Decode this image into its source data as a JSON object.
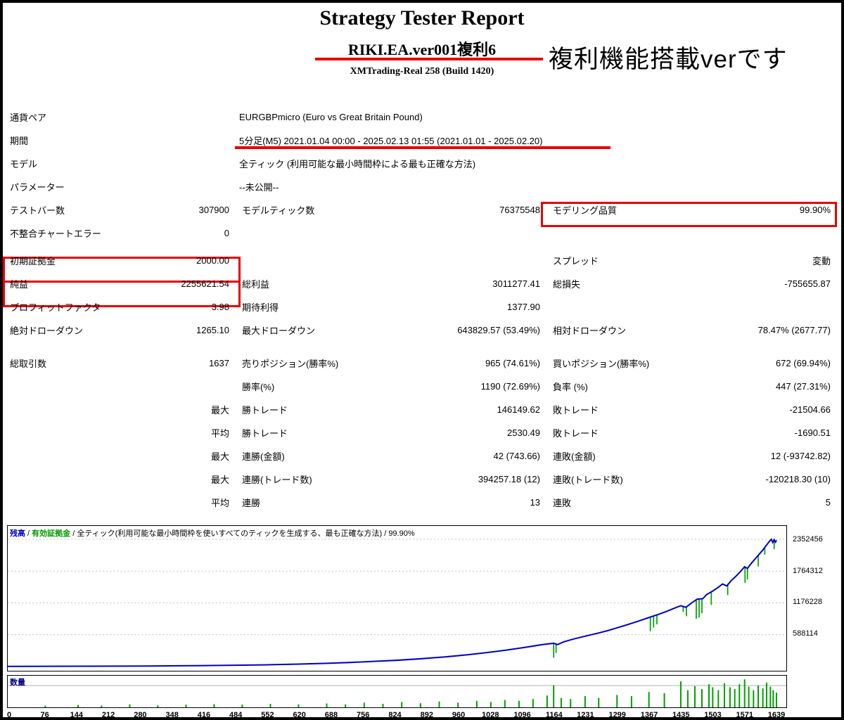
{
  "header": {
    "title": "Strategy Tester Report",
    "subtitle": "RIKI.EA.ver001複利6",
    "handwritten_note": "複利機能搭載verです",
    "server": "XMTrading-Real 258 (Build 1420)"
  },
  "annotation_color": "#e60000",
  "info_rows": [
    {
      "label": "通貨ペア",
      "value": "EURGBPmicro (Euro vs Great Britain Pound)"
    },
    {
      "label": "期間",
      "value": "5分足(M5) 2021.01.04 00:00 - 2025.02.13 01:55 (2021.01.01 - 2025.02.20)"
    },
    {
      "label": "モデル",
      "value": "全ティック (利用可能な最小時間枠による最も正確な方法)"
    },
    {
      "label": "パラメーター",
      "value": "--未公開--"
    }
  ],
  "stats_sections": [
    {
      "rows": [
        {
          "l1": "テストバー数",
          "v1": "307900",
          "l2": "モデルティック数",
          "v2": "76375548",
          "l3": "モデリング品質",
          "v3": "99.90%"
        },
        {
          "l1": "不整合チャートエラー",
          "v1": "0",
          "l2": "",
          "v2": "",
          "l3": "",
          "v3": ""
        }
      ]
    },
    {
      "rows": [
        {
          "l1": "初期証拠金",
          "v1": "2000.00",
          "l2": "",
          "v2": "",
          "l3": "スプレッド",
          "v3": "変動"
        },
        {
          "l1": "純益",
          "v1": "2255621.54",
          "l2": "総利益",
          "v2": "3011277.41",
          "l3": "総損失",
          "v3": "-755655.87"
        },
        {
          "l1": "プロフィットファクタ",
          "v1": "3.98",
          "l2": "期待利得",
          "v2": "1377.90",
          "l3": "",
          "v3": ""
        },
        {
          "l1": "絶対ドローダウン",
          "v1": "1265.10",
          "l2": "最大ドローダウン",
          "v2": "643829.57 (53.49%)",
          "l3": "相対ドローダウン",
          "v3": "78.47% (2677.77)"
        }
      ]
    },
    {
      "rows": [
        {
          "l1": "総取引数",
          "v1": "1637",
          "l2": "売りポジション(勝率%)",
          "v2": "965 (74.61%)",
          "l3": "買いポジション(勝率%)",
          "v3": "672 (69.94%)"
        },
        {
          "l1": "",
          "v1": "",
          "l2": "勝率(%)",
          "v2": "1190 (72.69%)",
          "l3": "負率 (%)",
          "v3": "447 (27.31%)"
        },
        {
          "l1": "",
          "v1": "最大",
          "l2": "勝トレード",
          "v2": "146149.62",
          "l3": "敗トレード",
          "v3": "-21504.66"
        },
        {
          "l1": "",
          "v1": "平均",
          "l2": "勝トレード",
          "v2": "2530.49",
          "l3": "敗トレード",
          "v3": "-1690.51"
        },
        {
          "l1": "",
          "v1": "最大",
          "l2": "連勝(金額)",
          "v2": "42 (743.66)",
          "l3": "連敗(金額)",
          "v3": "12 (-93742.82)"
        },
        {
          "l1": "",
          "v1": "最大",
          "l2": "連勝(トレード数)",
          "v2": "394257.18 (12)",
          "l3": "連敗(トレード数)",
          "v3": "-120218.30 (10)"
        },
        {
          "l1": "",
          "v1": "平均",
          "l2": "連勝",
          "v2": "13",
          "l3": "連敗",
          "v3": "5"
        }
      ]
    }
  ],
  "chart_data": {
    "type": "line",
    "legend": {
      "balance": "残高",
      "equity": "有効証拠金",
      "model": "全ティック(利用可能な最小時間枠を使いすべてのティックを生成する、最も正確な方法)",
      "quality": "99.90%"
    },
    "colors": {
      "balance": "#0000c0",
      "equity": "#00a000",
      "grid": "#c0c0c0"
    },
    "y_ticks": [
      2352456,
      1764312,
      1176228,
      588114
    ],
    "x_ticks": [
      0,
      76,
      144,
      212,
      280,
      348,
      416,
      484,
      552,
      620,
      688,
      756,
      824,
      892,
      960,
      1028,
      1096,
      1164,
      1231,
      1299,
      1367,
      1435,
      1503,
      1571,
      1639
    ],
    "xlim": [
      0,
      1660
    ],
    "ylim": [
      -80000,
      2600000
    ],
    "balance_points": [
      [
        0,
        2000
      ],
      [
        150,
        4000
      ],
      [
        300,
        8000
      ],
      [
        400,
        14000
      ],
      [
        500,
        24000
      ],
      [
        560,
        32000
      ],
      [
        620,
        43000
      ],
      [
        680,
        58000
      ],
      [
        730,
        74000
      ],
      [
        780,
        93000
      ],
      [
        830,
        115000
      ],
      [
        880,
        142000
      ],
      [
        930,
        175000
      ],
      [
        980,
        215000
      ],
      [
        1020,
        255000
      ],
      [
        1060,
        300000
      ],
      [
        1100,
        350000
      ],
      [
        1140,
        405000
      ],
      [
        1164,
        430000
      ],
      [
        1172,
        405000
      ],
      [
        1185,
        455000
      ],
      [
        1205,
        505000
      ],
      [
        1231,
        560000
      ],
      [
        1258,
        615000
      ],
      [
        1280,
        665000
      ],
      [
        1299,
        715000
      ],
      [
        1322,
        775000
      ],
      [
        1345,
        840000
      ],
      [
        1367,
        905000
      ],
      [
        1388,
        965000
      ],
      [
        1405,
        1020000
      ],
      [
        1422,
        1080000
      ],
      [
        1435,
        1125000
      ],
      [
        1446,
        1095000
      ],
      [
        1458,
        1175000
      ],
      [
        1470,
        1245000
      ],
      [
        1482,
        1255000
      ],
      [
        1490,
        1330000
      ],
      [
        1503,
        1395000
      ],
      [
        1514,
        1460000
      ],
      [
        1524,
        1525000
      ],
      [
        1533,
        1490000
      ],
      [
        1542,
        1585000
      ],
      [
        1552,
        1665000
      ],
      [
        1562,
        1755000
      ],
      [
        1571,
        1845000
      ],
      [
        1577,
        1815000
      ],
      [
        1585,
        1905000
      ],
      [
        1593,
        1985000
      ],
      [
        1601,
        2065000
      ],
      [
        1609,
        2145000
      ],
      [
        1616,
        2225000
      ],
      [
        1623,
        2305000
      ],
      [
        1628,
        2352456
      ],
      [
        1631,
        2295000
      ],
      [
        1634,
        2345000
      ],
      [
        1637,
        2300000
      ],
      [
        1639,
        2335000
      ]
    ],
    "equity_spikes": [
      [
        1164,
        430000,
        160000
      ],
      [
        1169,
        415000,
        250000
      ],
      [
        1370,
        910000,
        650000
      ],
      [
        1377,
        945000,
        720000
      ],
      [
        1384,
        960000,
        780000
      ],
      [
        1440,
        1110000,
        1010000
      ],
      [
        1447,
        1100000,
        930000
      ],
      [
        1468,
        1235000,
        880000
      ],
      [
        1474,
        1260000,
        905000
      ],
      [
        1480,
        1250000,
        985000
      ],
      [
        1500,
        1380000,
        1140000
      ],
      [
        1535,
        1500000,
        1320000
      ],
      [
        1572,
        1845000,
        1545000
      ],
      [
        1577,
        1820000,
        1610000
      ],
      [
        1600,
        2060000,
        1850000
      ],
      [
        1614,
        2210000,
        2070000
      ],
      [
        1634,
        2340000,
        2170000
      ]
    ],
    "volume": {
      "label": "数量",
      "bars": [
        [
          80,
          0.06
        ],
        [
          150,
          0.08
        ],
        [
          200,
          0.06
        ],
        [
          260,
          0.1
        ],
        [
          320,
          0.07
        ],
        [
          380,
          0.09
        ],
        [
          440,
          0.11
        ],
        [
          500,
          0.09
        ],
        [
          560,
          0.12
        ],
        [
          620,
          0.1
        ],
        [
          680,
          0.13
        ],
        [
          720,
          0.1
        ],
        [
          760,
          0.16
        ],
        [
          800,
          0.12
        ],
        [
          840,
          0.18
        ],
        [
          880,
          0.14
        ],
        [
          920,
          0.2
        ],
        [
          960,
          0.16
        ],
        [
          1000,
          0.22
        ],
        [
          1030,
          0.18
        ],
        [
          1060,
          0.25
        ],
        [
          1090,
          0.22
        ],
        [
          1120,
          0.28
        ],
        [
          1150,
          0.4
        ],
        [
          1164,
          0.75
        ],
        [
          1180,
          0.32
        ],
        [
          1200,
          0.28
        ],
        [
          1231,
          0.38
        ],
        [
          1260,
          0.32
        ],
        [
          1299,
          0.42
        ],
        [
          1330,
          0.38
        ],
        [
          1367,
          0.52
        ],
        [
          1400,
          0.48
        ],
        [
          1435,
          0.88
        ],
        [
          1450,
          0.58
        ],
        [
          1465,
          0.72
        ],
        [
          1480,
          0.62
        ],
        [
          1495,
          0.78
        ],
        [
          1503,
          0.68
        ],
        [
          1515,
          0.58
        ],
        [
          1528,
          0.82
        ],
        [
          1540,
          0.68
        ],
        [
          1550,
          0.62
        ],
        [
          1560,
          0.78
        ],
        [
          1571,
          0.95
        ],
        [
          1580,
          0.7
        ],
        [
          1590,
          0.58
        ],
        [
          1600,
          0.74
        ],
        [
          1610,
          0.64
        ],
        [
          1618,
          0.84
        ],
        [
          1626,
          0.7
        ],
        [
          1632,
          0.58
        ],
        [
          1639,
          0.5
        ]
      ]
    }
  }
}
